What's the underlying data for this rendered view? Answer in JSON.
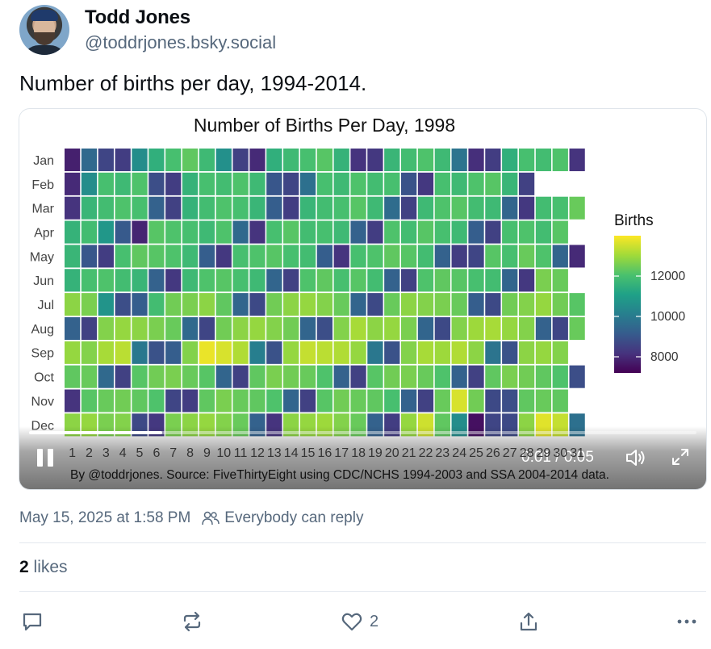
{
  "author": {
    "display_name": "Todd Jones",
    "handle": "@toddrjones.bsky.social"
  },
  "post": {
    "text": "Number of births per day, 1994-2014.",
    "timestamp": "May 15, 2025 at 1:58 PM",
    "reply_setting": "Everybody can reply",
    "likes_count": "2",
    "likes_label": "likes"
  },
  "actions": {
    "reply_icon": "speech-bubble-icon",
    "repost_icon": "repost-arrows-icon",
    "like_icon": "heart-icon",
    "like_count": "2",
    "share_icon": "share-icon",
    "more_icon": "ellipsis-icon"
  },
  "video": {
    "time": "0:01 / 0:05",
    "progress": 0.2
  },
  "chart_data": {
    "type": "heatmap",
    "title": "Number of Births Per Day, 1998",
    "y_categories": [
      "Jan",
      "Feb",
      "Mar",
      "Apr",
      "May",
      "Jun",
      "Jul",
      "Aug",
      "Sep",
      "Oct",
      "Nov",
      "Dec"
    ],
    "x_categories": [
      "1",
      "2",
      "3",
      "4",
      "5",
      "6",
      "7",
      "8",
      "9",
      "10",
      "11",
      "12",
      "13",
      "14",
      "15",
      "16",
      "17",
      "18",
      "19",
      "20",
      "21",
      "22",
      "23",
      "24",
      "25",
      "26",
      "27",
      "28",
      "29",
      "30",
      "31"
    ],
    "days_in_month": [
      31,
      28,
      31,
      30,
      31,
      30,
      31,
      31,
      30,
      31,
      30,
      31
    ],
    "values": [
      [
        7800,
        9500,
        8600,
        8400,
        10500,
        11500,
        12000,
        12300,
        11800,
        10600,
        8500,
        8000,
        11500,
        11800,
        12000,
        12200,
        11600,
        8200,
        8300,
        11700,
        11900,
        12100,
        11800,
        9800,
        8100,
        8400,
        11500,
        12000,
        11900,
        12100,
        8200
      ],
      [
        8000,
        10500,
        12000,
        11800,
        12100,
        8800,
        8400,
        11600,
        12000,
        11900,
        12100,
        11800,
        9000,
        8600,
        9700,
        12000,
        11800,
        12100,
        11900,
        12000,
        8900,
        8300,
        12000,
        11800,
        12100,
        12200,
        11700,
        8500
      ],
      [
        8200,
        11700,
        11900,
        12100,
        12000,
        9300,
        8500,
        11600,
        11900,
        12100,
        12000,
        11700,
        9200,
        8400,
        11700,
        11900,
        12000,
        12200,
        11800,
        9600,
        8500,
        11800,
        12100,
        12200,
        11900,
        11800,
        9400,
        8300,
        11900,
        12000,
        12400
      ],
      [
        11600,
        11900,
        10800,
        9100,
        7900,
        12200,
        12100,
        12000,
        11800,
        12100,
        9500,
        8200,
        12000,
        12200,
        11900,
        12000,
        11800,
        9300,
        8400,
        12100,
        11900,
        12200,
        12000,
        11800,
        9200,
        8500,
        12000,
        12100,
        11900,
        12200
      ],
      [
        11700,
        9000,
        8400,
        12000,
        12300,
        12200,
        12100,
        11800,
        9200,
        8300,
        12000,
        12100,
        12200,
        12000,
        11900,
        9200,
        8200,
        12000,
        12100,
        12300,
        12200,
        11900,
        9300,
        8400,
        8600,
        12200,
        12000,
        12400,
        12100,
        9400,
        8000
      ],
      [
        11600,
        12000,
        12100,
        11900,
        11700,
        9300,
        8300,
        11800,
        12100,
        12200,
        12000,
        11800,
        9400,
        8500,
        12100,
        12300,
        12000,
        12200,
        11900,
        9300,
        8500,
        12100,
        12300,
        12200,
        12000,
        11900,
        9400,
        8300,
        12600,
        12400
      ],
      [
        12800,
        12600,
        10700,
        8800,
        9200,
        11900,
        12500,
        12600,
        12800,
        12300,
        9400,
        8700,
        12500,
        12800,
        12900,
        12700,
        12400,
        9400,
        8700,
        12400,
        12800,
        12700,
        12600,
        12400,
        9200,
        8700,
        12500,
        12700,
        12900,
        12500,
        12200
      ],
      [
        9300,
        8500,
        12700,
        12900,
        12800,
        12600,
        12400,
        9500,
        8600,
        12500,
        12800,
        12900,
        12700,
        12500,
        9400,
        8800,
        12700,
        13100,
        12800,
        12900,
        12600,
        9400,
        8700,
        12700,
        13000,
        13100,
        12900,
        12700,
        9300,
        8600,
        12400
      ],
      [
        12900,
        12700,
        13100,
        13300,
        9900,
        8900,
        9200,
        12700,
        13800,
        13600,
        13200,
        10100,
        8900,
        12900,
        13400,
        13300,
        13200,
        12900,
        9900,
        8900,
        12700,
        13100,
        13000,
        13200,
        12800,
        9800,
        8900,
        12800,
        12900,
        12700
      ],
      [
        12300,
        12400,
        9500,
        8500,
        12200,
        12500,
        12600,
        12400,
        12200,
        9400,
        8500,
        12300,
        12600,
        12500,
        12400,
        12100,
        9300,
        8500,
        12200,
        12500,
        12600,
        12400,
        12100,
        9300,
        8500,
        12300,
        12600,
        12500,
        12300,
        12100,
        8800
      ],
      [
        8200,
        12200,
        12400,
        12500,
        12300,
        12100,
        8600,
        8400,
        12300,
        12600,
        12400,
        12300,
        12100,
        9400,
        8500,
        12200,
        12500,
        12400,
        12300,
        12000,
        9300,
        8500,
        12400,
        13600,
        12500,
        8700,
        8800,
        12300,
        12400,
        12300
      ],
      [
        12800,
        12900,
        12600,
        12700,
        8700,
        8300,
        12600,
        12800,
        12900,
        12700,
        12400,
        9300,
        8200,
        12800,
        12900,
        13000,
        12700,
        12400,
        9300,
        8400,
        12900,
        13500,
        12300,
        10500,
        7500,
        8600,
        8700,
        12800,
        13700,
        13400,
        9700
      ]
    ],
    "color_scale": {
      "title": "Births",
      "min": 7200,
      "max": 14000,
      "ticks": [
        8000,
        10000,
        12000
      ],
      "palette": [
        "#440154",
        "#46337e",
        "#365c8d",
        "#277f8e",
        "#1fa187",
        "#4ac16d",
        "#a0da39",
        "#fde725"
      ]
    },
    "caption": "By @toddrjones. Source: FiveThirtyEight using CDC/NCHS 1994-2003 and SSA 2004-2014 data."
  }
}
